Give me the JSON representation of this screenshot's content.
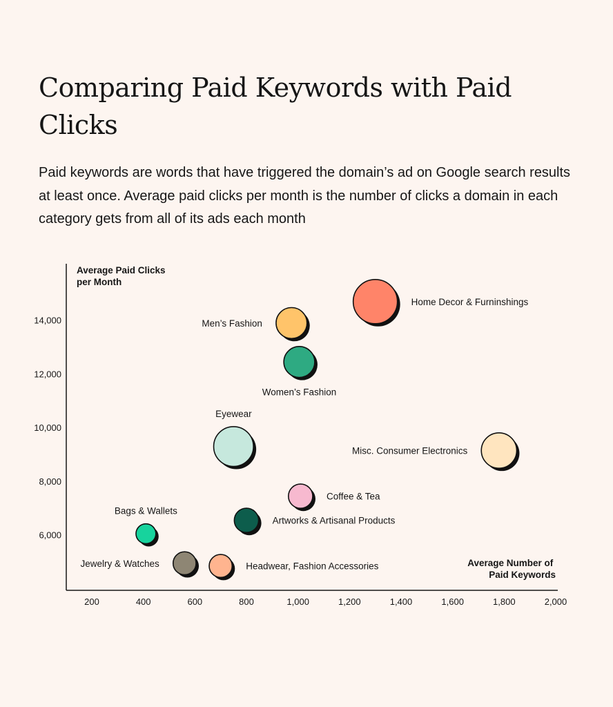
{
  "page": {
    "title": "Comparing Paid Keywords with Paid Clicks",
    "subtitle": "Paid keywords are words that have triggered the domain’s ad on Google search results at least once. Average paid clicks per month is the number of clicks a domain in each category gets from all of its ads each month"
  },
  "chart_data": {
    "type": "scatter",
    "xlabel": [
      "Average Number of",
      "Paid Keywords"
    ],
    "ylabel": [
      "Average Paid Clicks",
      "per Month"
    ],
    "xlim": [
      100,
      2000
    ],
    "ylim": [
      4000,
      15500
    ],
    "xticks": [
      {
        "value": 200,
        "label": "200"
      },
      {
        "value": 400,
        "label": "400"
      },
      {
        "value": 600,
        "label": "600"
      },
      {
        "value": 800,
        "label": "800"
      },
      {
        "value": 1000,
        "label": "1,000"
      },
      {
        "value": 1200,
        "label": "1,200"
      },
      {
        "value": 1400,
        "label": "1,400"
      },
      {
        "value": 1600,
        "label": "1,600"
      },
      {
        "value": 1800,
        "label": "1,800"
      },
      {
        "value": 2000,
        "label": "2,000"
      }
    ],
    "yticks": [
      {
        "value": 6000,
        "label": "6,000"
      },
      {
        "value": 8000,
        "label": "8,000"
      },
      {
        "value": 10000,
        "label": "10,000"
      },
      {
        "value": 12000,
        "label": "12,000"
      },
      {
        "value": 14000,
        "label": "14,000"
      }
    ],
    "grid": false,
    "points": [
      {
        "name": "Home Decor & Furninshings",
        "x": 1300,
        "y": 14700,
        "size": 1.0,
        "color": "#ff8469",
        "label_side": "right"
      },
      {
        "name": "Men’s Fashion",
        "x": 975,
        "y": 13900,
        "size": 0.7,
        "color": "#ffc46a",
        "label_side": "left"
      },
      {
        "name": "Women’s Fashion",
        "x": 1005,
        "y": 12450,
        "size": 0.7,
        "color": "#2eaa82",
        "label_side": "below"
      },
      {
        "name": "Eyewear",
        "x": 750,
        "y": 9300,
        "size": 0.9,
        "color": "#c6e8dd",
        "label_side": "above"
      },
      {
        "name": "Misc. Consumer Electronics",
        "x": 1780,
        "y": 9150,
        "size": 0.8,
        "color": "#ffe5bf",
        "label_side": "left"
      },
      {
        "name": "Coffee & Tea",
        "x": 1010,
        "y": 7450,
        "size": 0.55,
        "color": "#f7b9cf",
        "label_side": "right"
      },
      {
        "name": "Artworks & Artisanal Products",
        "x": 800,
        "y": 6550,
        "size": 0.55,
        "color": "#0d5d4c",
        "label_side": "right"
      },
      {
        "name": "Bags & Wallets",
        "x": 410,
        "y": 6050,
        "size": 0.45,
        "color": "#17d39d",
        "label_side": "above"
      },
      {
        "name": "Jewelry & Watches",
        "x": 560,
        "y": 4950,
        "size": 0.52,
        "color": "#8e8674",
        "label_side": "left"
      },
      {
        "name": "Headwear, Fashion Accessories",
        "x": 700,
        "y": 4850,
        "size": 0.52,
        "color": "#ffb48f",
        "label_side": "right"
      }
    ]
  }
}
